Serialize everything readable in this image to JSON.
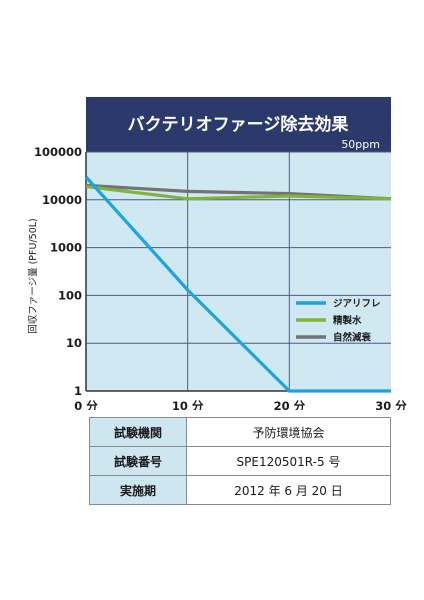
{
  "chart_data": {
    "type": "line",
    "title": "バクテリオファージ除去効果",
    "subtitle": "50ppm",
    "ylabel": "回収ファージ量 (PFU/50L)",
    "xlabel": "",
    "y_scale": "log",
    "ylim": [
      1,
      100000
    ],
    "xlim": [
      0,
      30
    ],
    "x": [
      0,
      10,
      20,
      30
    ],
    "x_tick_labels": [
      "0 分",
      "10 分",
      "20 分",
      "30 分"
    ],
    "y_ticks": [
      1,
      10,
      100,
      1000,
      10000,
      100000
    ],
    "y_tick_labels": [
      "1",
      "10",
      "100",
      "1000",
      "10000",
      "100000"
    ],
    "grid": true,
    "legend_position": "right",
    "series": [
      {
        "name": "ジアリフレ",
        "color": "#1ba5e0",
        "points": [
          [
            0,
            30000
          ],
          [
            10,
            130
          ],
          [
            20,
            1
          ],
          [
            30,
            1
          ]
        ]
      },
      {
        "name": "精製水",
        "color": "#7fb33a",
        "points": [
          [
            0,
            19000
          ],
          [
            10,
            10500
          ],
          [
            20,
            12000
          ],
          [
            30,
            10500
          ]
        ]
      },
      {
        "name": "自然減衰",
        "color": "#737373",
        "points": [
          [
            0,
            20000
          ],
          [
            10,
            15000
          ],
          [
            20,
            13500
          ],
          [
            30,
            10500
          ]
        ]
      }
    ]
  },
  "info_table": {
    "rows": [
      {
        "label": "試験機関",
        "value": "予防環境協会"
      },
      {
        "label": "試験番号",
        "value": "SPE120501R-5 号"
      },
      {
        "label": "実施期",
        "value": "2012 年 6 月 20 日"
      }
    ]
  },
  "colors": {
    "header_bg": "#2b3a6b",
    "plot_bg": "#cfe8f2",
    "grid": "#4d5a80"
  }
}
